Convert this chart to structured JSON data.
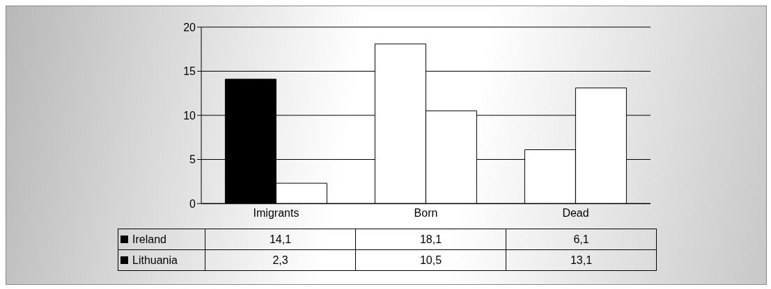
{
  "chart_data": {
    "type": "bar",
    "categories": [
      "Imigrants",
      "Born",
      "Dead"
    ],
    "series": [
      {
        "name": "Ireland",
        "color": "#000000",
        "colors": [
          "#000000",
          "#ffffff",
          "#ffffff"
        ],
        "values": [
          14.1,
          18.1,
          6.1
        ],
        "value_labels": [
          "14,1",
          "18,1",
          "6,1"
        ]
      },
      {
        "name": "Lithuania",
        "color": "#000000",
        "colors": [
          "#ffffff",
          "#ffffff",
          "#ffffff"
        ],
        "values": [
          2.3,
          10.5,
          13.1
        ],
        "value_labels": [
          "2,3",
          "10,5",
          "13,1"
        ]
      }
    ],
    "ylim": [
      0,
      20
    ],
    "yticks": [
      0,
      5,
      10,
      15,
      20
    ],
    "grid": "y",
    "legend": "bottom"
  }
}
